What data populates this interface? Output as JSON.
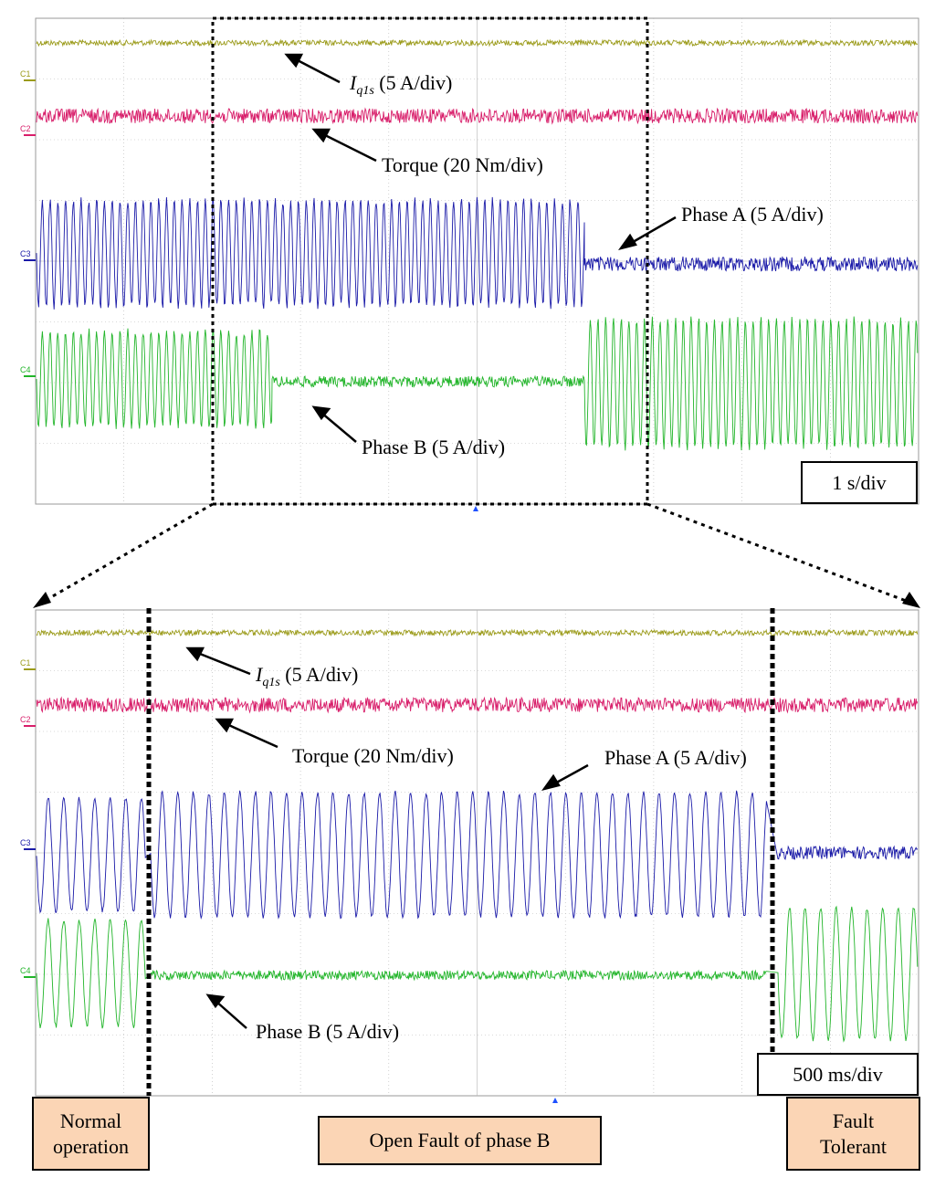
{
  "chart_data": [
    {
      "type": "line",
      "title": "",
      "timebase": "1 s/div",
      "channels": [
        {
          "id": "C1",
          "name": "Iq1s (5 A/div)",
          "color": "#9b9b1a"
        },
        {
          "id": "C2",
          "name": "Torque (20 Nm/div)",
          "color": "#d81e6a"
        },
        {
          "id": "C3",
          "name": "Phase A (5 A/div)",
          "color": "#1a1aa8"
        },
        {
          "id": "C4",
          "name": "Phase B (5 A/div)",
          "color": "#22b52a"
        }
      ],
      "events_s": {
        "phase_b_open_fault": 2.7,
        "fault_tolerant_start": 6.3
      },
      "x_range_s": [
        0,
        10
      ]
    },
    {
      "type": "line",
      "title": "",
      "timebase": "500 ms/div",
      "channels": [
        {
          "id": "C1",
          "name": "Iq1s (5 A/div)",
          "color": "#9b9b1a"
        },
        {
          "id": "C2",
          "name": "Torque (20 Nm/div)",
          "color": "#d81e6a"
        },
        {
          "id": "C3",
          "name": "Phase A (5 A/div)",
          "color": "#1a1aa8"
        },
        {
          "id": "C4",
          "name": "Phase B (5 A/div)",
          "color": "#22b52a"
        }
      ],
      "events_s": {
        "phase_b_open_fault": 0.63,
        "fault_tolerant_start": 4.2
      },
      "x_range_s": [
        0,
        5
      ]
    }
  ],
  "labels": {
    "iq_main": "I",
    "iq_sub": "q1s",
    "iq_unit": " (5 A/div)",
    "torque": "Torque (20 Nm/div)",
    "phase_a": "Phase A (5 A/div)",
    "phase_b": "Phase B (5 A/div)",
    "timebase_top": "1 s/div",
    "timebase_bottom": "500 ms/div",
    "ch1": "C1",
    "ch2": "C2",
    "ch3": "C3",
    "ch4": "C4"
  },
  "regions": {
    "normal_line1": "Normal",
    "normal_line2": "operation",
    "open_fault": "Open Fault of phase B",
    "tolerant_line1": "Fault",
    "tolerant_line2": "Tolerant"
  },
  "colors": {
    "c1": "#9b9b1a",
    "c2": "#d81e6a",
    "c3": "#1a1aa8",
    "c4": "#22b52a",
    "grid": "#b5b5b5",
    "region_fill": "#fbd5b5"
  }
}
